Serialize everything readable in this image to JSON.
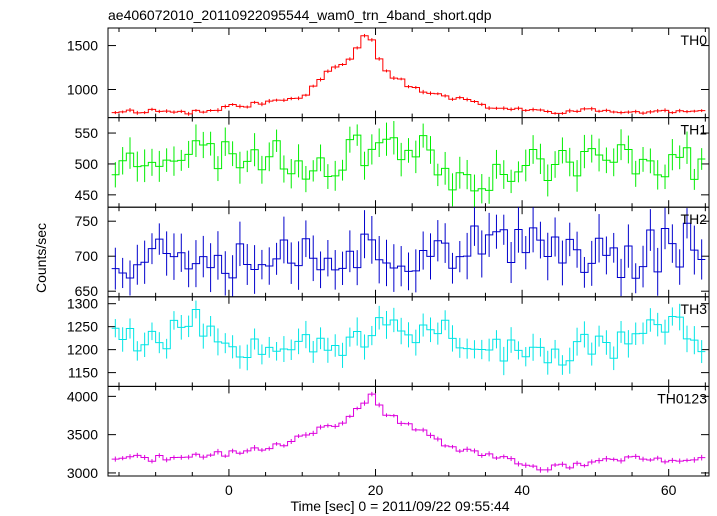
{
  "chart_data": {
    "type": "line",
    "title": "ae406072010_20110922095544_wam0_trn_4band_short.qdp",
    "xlabel": "Time [sec] 0 = 2011/09/22 09:55:44",
    "ylabel": "Counts/sec",
    "xlim": [
      -16.5,
      65.5
    ],
    "xticks": [
      0,
      20,
      40,
      60
    ],
    "bin_width": 1.0,
    "colors": {
      "TH0": "#ff0000",
      "TH1": "#00ee00",
      "TH2": "#0000cc",
      "TH3": "#00e5e5",
      "TH0123": "#dd00dd",
      "axes": "#000000"
    },
    "panels": [
      {
        "name": "TH0",
        "label": "TH0",
        "ylim": [
          680,
          1700
        ],
        "yticks": [
          1000,
          1500
        ],
        "keypoints": [
          [
            -16,
            750
          ],
          [
            -10,
            760
          ],
          [
            -6,
            740
          ],
          [
            -2,
            760
          ],
          [
            0,
            800
          ],
          [
            3,
            830
          ],
          [
            6,
            860
          ],
          [
            9,
            900
          ],
          [
            11,
            950
          ],
          [
            12,
            1100
          ],
          [
            14,
            1250
          ],
          [
            16,
            1320
          ],
          [
            17,
            1420
          ],
          [
            18,
            1550
          ],
          [
            19,
            1650
          ],
          [
            19.5,
            1580
          ],
          [
            20,
            1480
          ],
          [
            21,
            1250
          ],
          [
            23,
            1120
          ],
          [
            25,
            1020
          ],
          [
            28,
            940
          ],
          [
            31,
            900
          ],
          [
            33,
            850
          ],
          [
            36,
            800
          ],
          [
            40,
            760
          ],
          [
            45,
            750
          ],
          [
            50,
            760
          ],
          [
            55,
            740
          ],
          [
            60,
            750
          ],
          [
            65,
            740
          ]
        ],
        "amplitude": 20,
        "seed": 11
      },
      {
        "name": "TH1",
        "label": "TH1",
        "ylim": [
          430,
          575
        ],
        "yticks": [
          450,
          500,
          550
        ],
        "keypoints": [
          [
            -16,
            495
          ],
          [
            -10,
            520
          ],
          [
            -5,
            520
          ],
          [
            0,
            515
          ],
          [
            5,
            515
          ],
          [
            10,
            500
          ],
          [
            14,
            505
          ],
          [
            18,
            520
          ],
          [
            20,
            540
          ],
          [
            24,
            530
          ],
          [
            28,
            510
          ],
          [
            30,
            485
          ],
          [
            34,
            480
          ],
          [
            38,
            490
          ],
          [
            42,
            500
          ],
          [
            46,
            505
          ],
          [
            50,
            505
          ],
          [
            55,
            510
          ],
          [
            60,
            505
          ],
          [
            65,
            500
          ]
        ],
        "amplitude": 22,
        "seed": 23
      },
      {
        "name": "TH2",
        "label": "TH2",
        "ylim": [
          642,
          770
        ],
        "yticks": [
          650,
          700,
          750
        ],
        "keypoints": [
          [
            -16,
            700
          ],
          [
            -10,
            705
          ],
          [
            -5,
            712
          ],
          [
            0,
            705
          ],
          [
            5,
            700
          ],
          [
            10,
            705
          ],
          [
            15,
            710
          ],
          [
            20,
            705
          ],
          [
            25,
            710
          ],
          [
            30,
            715
          ],
          [
            35,
            710
          ],
          [
            40,
            705
          ],
          [
            45,
            715
          ],
          [
            50,
            705
          ],
          [
            55,
            700
          ],
          [
            60,
            715
          ],
          [
            65,
            730
          ]
        ],
        "amplitude": 28,
        "seed": 37
      },
      {
        "name": "TH3",
        "label": "TH3",
        "ylim": [
          1120,
          1315
        ],
        "yticks": [
          1150,
          1200,
          1250,
          1300
        ],
        "keypoints": [
          [
            -16,
            1270
          ],
          [
            -12,
            1210
          ],
          [
            -8,
            1230
          ],
          [
            -6,
            1280
          ],
          [
            -3,
            1240
          ],
          [
            0,
            1210
          ],
          [
            5,
            1220
          ],
          [
            10,
            1230
          ],
          [
            15,
            1210
          ],
          [
            20,
            1230
          ],
          [
            22,
            1260
          ],
          [
            26,
            1240
          ],
          [
            30,
            1250
          ],
          [
            33,
            1200
          ],
          [
            36,
            1210
          ],
          [
            40,
            1190
          ],
          [
            44,
            1175
          ],
          [
            48,
            1210
          ],
          [
            52,
            1210
          ],
          [
            56,
            1230
          ],
          [
            60,
            1260
          ],
          [
            63,
            1230
          ],
          [
            65,
            1220
          ]
        ],
        "amplitude": 25,
        "seed": 53
      },
      {
        "name": "TH0123",
        "label": "TH0123",
        "ylim": [
          2960,
          4130
        ],
        "yticks": [
          3000,
          3500,
          4000
        ],
        "keypoints": [
          [
            -16,
            3200
          ],
          [
            -10,
            3190
          ],
          [
            -5,
            3200
          ],
          [
            0,
            3260
          ],
          [
            3,
            3300
          ],
          [
            7,
            3350
          ],
          [
            10,
            3480
          ],
          [
            13,
            3580
          ],
          [
            16,
            3700
          ],
          [
            18,
            3850
          ],
          [
            19,
            4030
          ],
          [
            20,
            4000
          ],
          [
            21,
            3800
          ],
          [
            24,
            3620
          ],
          [
            28,
            3500
          ],
          [
            30,
            3350
          ],
          [
            32,
            3300
          ],
          [
            36,
            3220
          ],
          [
            40,
            3120
          ],
          [
            43,
            3050
          ],
          [
            46,
            3100
          ],
          [
            50,
            3140
          ],
          [
            55,
            3200
          ],
          [
            60,
            3170
          ],
          [
            65,
            3180
          ]
        ],
        "amplitude": 30,
        "seed": 71
      }
    ]
  }
}
